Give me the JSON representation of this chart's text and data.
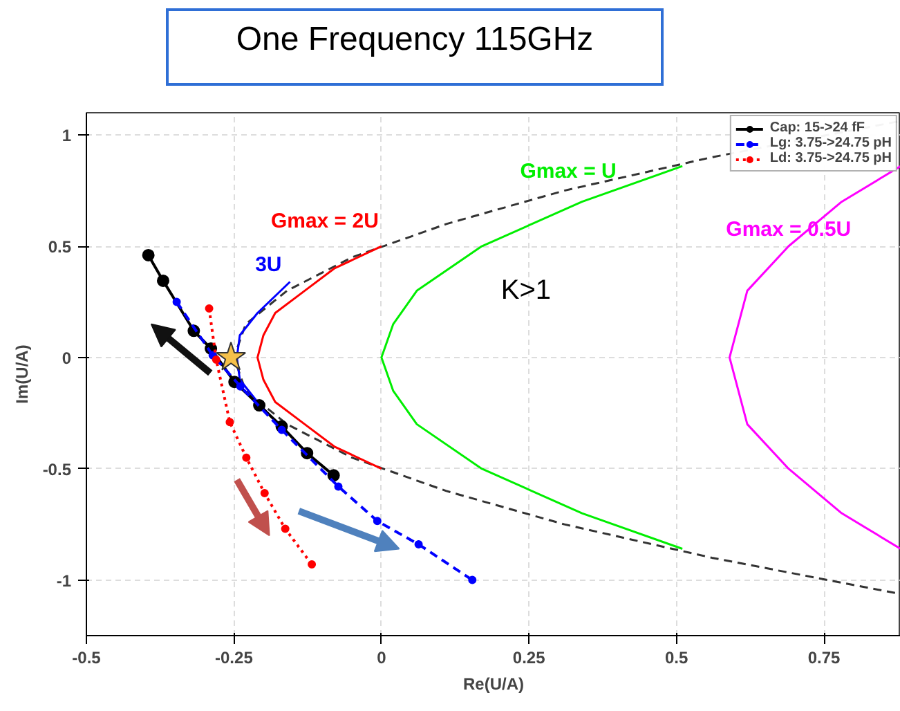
{
  "chart_data": {
    "type": "line",
    "title": "One Frequency 115GHz",
    "xlabel": "Re(U/A)",
    "ylabel": "Im(U/A)",
    "xlim": [
      -0.5,
      0.88
    ],
    "ylim": [
      -1.25,
      1.1
    ],
    "xticks": [
      -0.5,
      -0.25,
      0,
      0.25,
      0.5,
      0.75
    ],
    "yticks": [
      -1,
      -0.5,
      0,
      0.5,
      1
    ],
    "grid": true,
    "legend": "top right",
    "series": [
      {
        "color": "#333333",
        "line_style": "dashed",
        "marker": "none",
        "x": [
          0.874,
          0.56,
          0.31,
          0.11,
          -0.05,
          -0.16,
          -0.23,
          -0.25,
          -0.23,
          -0.16,
          -0.05,
          0.11,
          0.31,
          0.56,
          0.874
        ],
        "values": [
          1.06,
          0.9,
          0.75,
          0.6,
          0.45,
          0.3,
          0.15,
          0,
          -0.15,
          -0.3,
          -0.45,
          -0.6,
          -0.75,
          -0.9,
          -1.06
        ]
      },
      {
        "name": "Gmax = 2U",
        "color": "#ff0000",
        "line_style": "solid",
        "marker": "none",
        "x": [
          0.0,
          -0.08,
          -0.13,
          -0.18,
          -0.2,
          -0.21,
          -0.2,
          -0.18,
          -0.13,
          -0.08,
          0.0
        ],
        "values": [
          0.5,
          0.4,
          0.3,
          0.2,
          0.1,
          0,
          -0.1,
          -0.2,
          -0.3,
          -0.4,
          -0.5
        ]
      },
      {
        "name": "Gmax = U",
        "color": "#00ee00",
        "line_style": "solid",
        "marker": "none",
        "x": [
          0.51,
          0.34,
          0.17,
          0.06,
          0.02,
          0.0,
          0.02,
          0.06,
          0.17,
          0.34,
          0.51
        ],
        "values": [
          0.86,
          0.7,
          0.5,
          0.3,
          0.15,
          0,
          -0.15,
          -0.3,
          -0.5,
          -0.7,
          -0.86
        ]
      },
      {
        "name": "Gmax = 0.5U",
        "color": "#ff00ff",
        "line_style": "solid",
        "marker": "none",
        "x": [
          0.88,
          0.78,
          0.69,
          0.62,
          0.59,
          0.62,
          0.69,
          0.78,
          0.88
        ],
        "values": [
          0.86,
          0.7,
          0.5,
          0.3,
          0,
          -0.3,
          -0.5,
          -0.7,
          -0.86
        ]
      },
      {
        "name": "3U",
        "color": "#0000ff",
        "line_style": "solid",
        "marker": "none",
        "x": [
          -0.155,
          -0.21,
          -0.24,
          -0.245,
          -0.24,
          -0.21,
          -0.175
        ],
        "values": [
          0.34,
          0.2,
          0.1,
          0,
          -0.1,
          -0.2,
          -0.3
        ]
      },
      {
        "name": "Cap: 15->24 fF",
        "color": "#000000",
        "line_style": "solid",
        "marker": "circle",
        "x": [
          -0.395,
          -0.37,
          -0.318,
          -0.289,
          -0.249,
          -0.207,
          -0.169,
          -0.126,
          -0.081
        ],
        "values": [
          0.46,
          0.345,
          0.12,
          0.04,
          -0.11,
          -0.215,
          -0.31,
          -0.43,
          -0.53
        ]
      },
      {
        "name": "Lg: 3.75->24.75 pH",
        "color": "#0000ff",
        "line_style": "dashed",
        "marker": "circle",
        "x": [
          -0.347,
          -0.286,
          -0.239,
          -0.169,
          -0.073,
          -0.007,
          0.063,
          0.154
        ],
        "values": [
          0.25,
          0.01,
          -0.13,
          -0.325,
          -0.58,
          -0.735,
          -0.84,
          -1.0
        ]
      },
      {
        "name": "Ld: 3.75->24.75 pH",
        "color": "#ff0000",
        "line_style": "dotted",
        "marker": "circle",
        "x": [
          -0.292,
          -0.28,
          -0.257,
          -0.229,
          -0.198,
          -0.163,
          -0.118
        ],
        "values": [
          0.22,
          -0.01,
          -0.29,
          -0.45,
          -0.61,
          -0.77,
          -0.93
        ]
      },
      {
        "type": "scatter",
        "color": "#f5c04a",
        "marker": "star",
        "x": [
          -0.255
        ],
        "values": [
          0.0
        ]
      }
    ],
    "annotations": [
      "K>1"
    ]
  }
}
